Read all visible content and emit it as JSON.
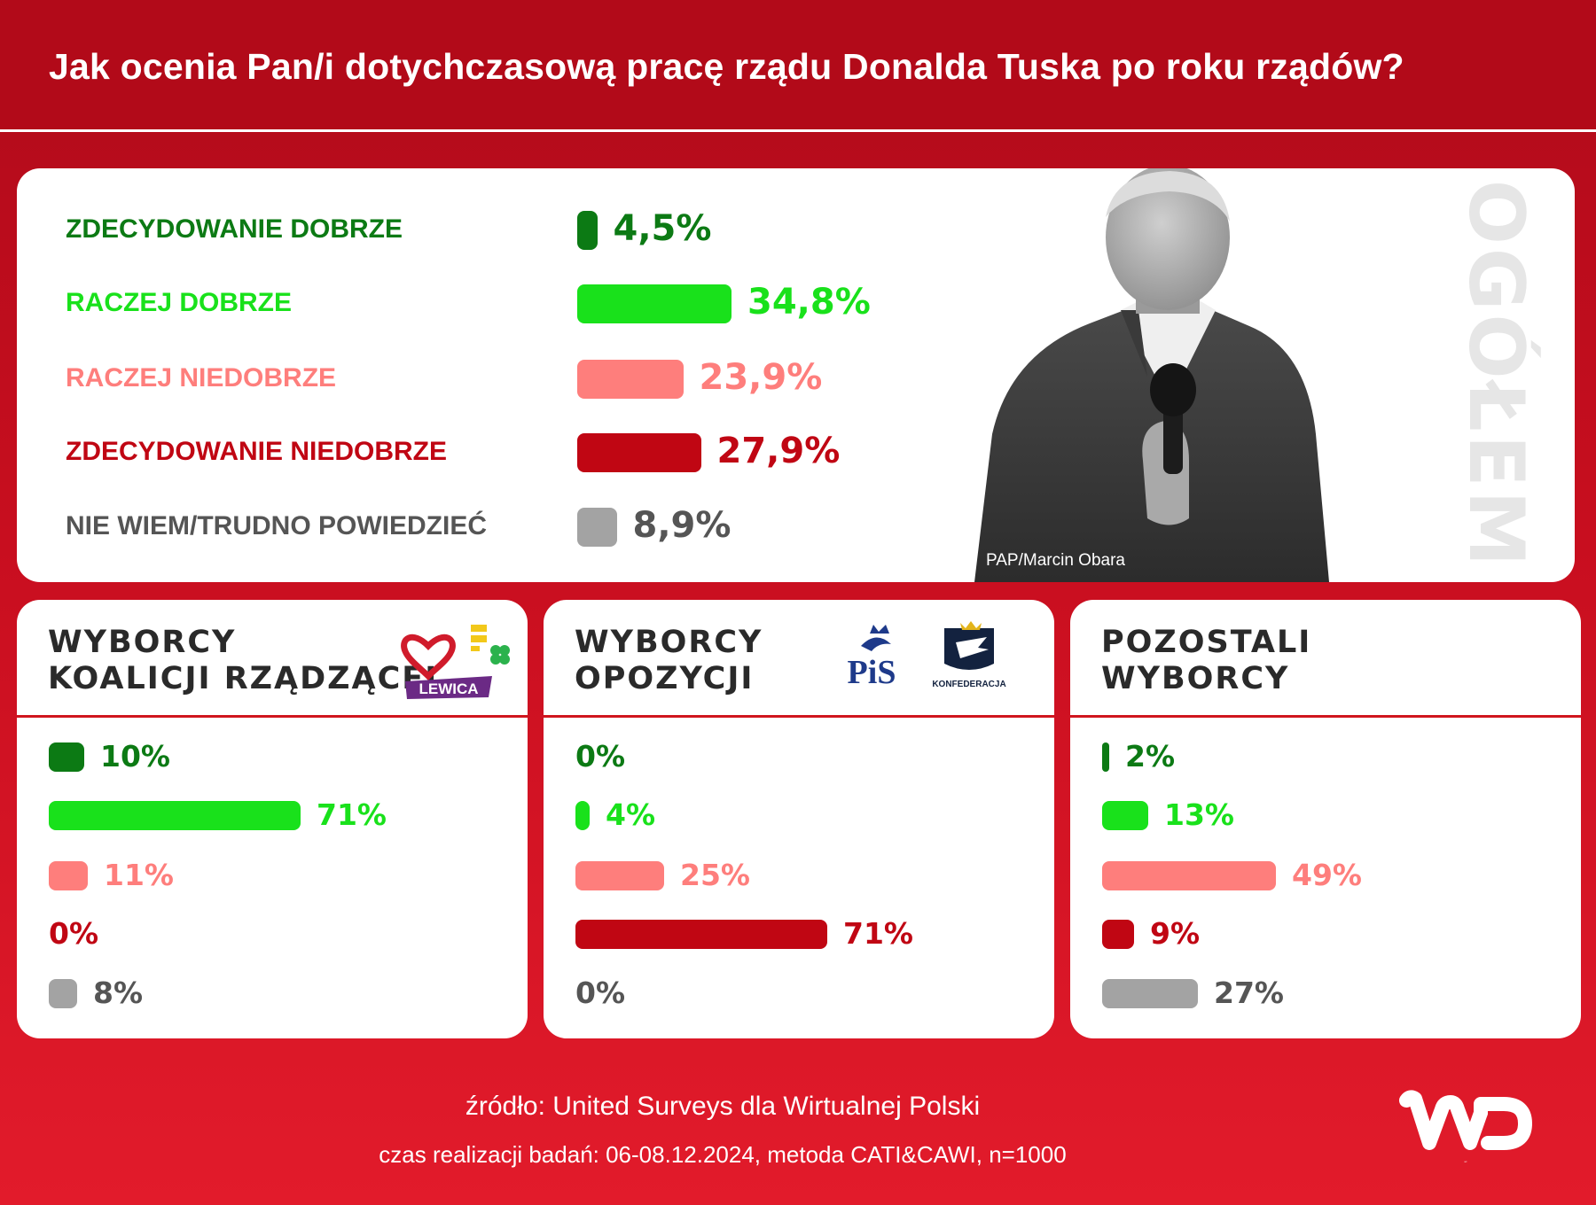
{
  "title": "Jak ocenia Pan/i dotychczasową pracę rządu Donalda Tuska po roku rządów?",
  "photo_credit": "PAP/Marcin Obara",
  "overall_label": "OGÓŁEM",
  "colors": {
    "zdecydowanie_dobrze": "#0c7a14",
    "raczej_dobrze": "#19e11b",
    "raczej_niedobrze": "#fe7e7c",
    "zdecydowanie_niedobrze": "#c00613",
    "nie_wiem": "#a3a3a3",
    "gray_label": "#555555",
    "red_accent": "#c80e1f"
  },
  "logos": {
    "coalition": [
      "heart-logo",
      "trzecia-droga-logo",
      "LEWICA"
    ],
    "opposition": [
      "PiS",
      "KONFEDERACJA"
    ]
  },
  "chart_data": [
    {
      "type": "bar",
      "title": "OGÓŁEM",
      "orientation": "horizontal",
      "categories": [
        "ZDECYDOWANIE DOBRZE",
        "RACZEJ DOBRZE",
        "RACZEJ NIEDOBRZE",
        "ZDECYDOWANIE NIEDOBRZE",
        "NIE WIEM/TRUDNO POWIEDZIEĆ"
      ],
      "values": [
        4.5,
        34.8,
        23.9,
        27.9,
        8.9
      ],
      "value_labels": [
        "4,5%",
        "34,8%",
        "23,9%",
        "27,9%",
        "8,9%"
      ],
      "unit": "%"
    },
    {
      "type": "bar",
      "title": "WYBORCY KOALICJI RZĄDZĄCEJ",
      "title_lines": [
        "WYBORCY",
        "KOALICJI RZĄDZĄCEJ"
      ],
      "orientation": "horizontal",
      "categories": [
        "ZDECYDOWANIE DOBRZE",
        "RACZEJ DOBRZE",
        "RACZEJ NIEDOBRZE",
        "ZDECYDOWANIE NIEDOBRZE",
        "NIE WIEM/TRUDNO POWIEDZIEĆ"
      ],
      "values": [
        10,
        71,
        11,
        0,
        8
      ],
      "value_labels": [
        "10%",
        "71%",
        "11%",
        "0%",
        "8%"
      ],
      "unit": "%"
    },
    {
      "type": "bar",
      "title": "WYBORCY OPOZYCJI",
      "title_lines": [
        "WYBORCY",
        "OPOZYCJI"
      ],
      "orientation": "horizontal",
      "categories": [
        "ZDECYDOWANIE DOBRZE",
        "RACZEJ DOBRZE",
        "RACZEJ NIEDOBRZE",
        "ZDECYDOWANIE NIEDOBRZE",
        "NIE WIEM/TRUDNO POWIEDZIEĆ"
      ],
      "values": [
        0,
        4,
        25,
        71,
        0
      ],
      "value_labels": [
        "0%",
        "4%",
        "25%",
        "71%",
        "0%"
      ],
      "unit": "%"
    },
    {
      "type": "bar",
      "title": "POZOSTALI WYBORCY",
      "title_lines": [
        "POZOSTALI",
        "WYBORCY"
      ],
      "orientation": "horizontal",
      "categories": [
        "ZDECYDOWANIE DOBRZE",
        "RACZEJ DOBRZE",
        "RACZEJ NIEDOBRZE",
        "ZDECYDOWANIE NIEDOBRZE",
        "NIE WIEM/TRUDNO POWIEDZIEĆ"
      ],
      "values": [
        2,
        13,
        49,
        9,
        27
      ],
      "value_labels": [
        "2%",
        "13%",
        "49%",
        "9%",
        "27%"
      ],
      "unit": "%"
    }
  ],
  "footer": {
    "source": "źródło: United Surveys dla Wirtualnej Polski",
    "method": "czas realizacji badań: 06-08.12.2024, metoda CATI&CAWI, n=1000"
  },
  "brand_logo": "WP"
}
